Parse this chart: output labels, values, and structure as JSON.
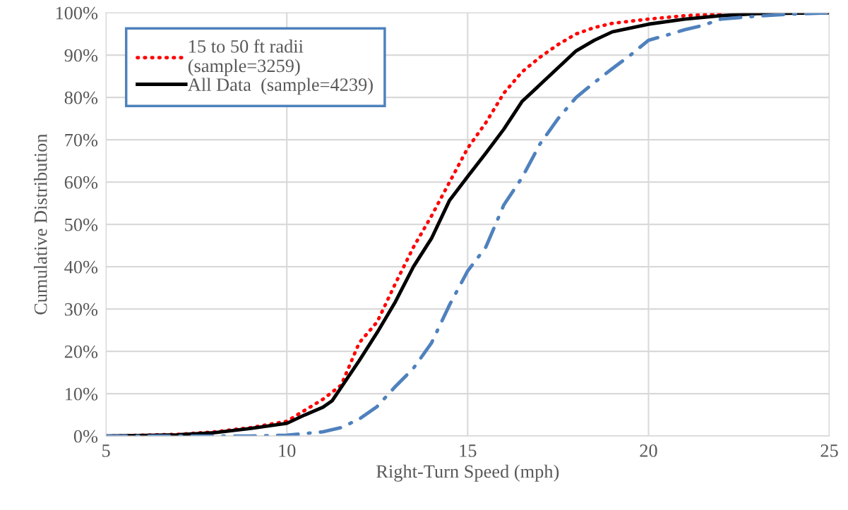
{
  "chart_data": {
    "type": "line",
    "xlabel": "Right-Turn Speed (mph)",
    "ylabel": "Cumulative Distribution",
    "xlim": [
      5,
      25
    ],
    "xticks": [
      5,
      10,
      15,
      20,
      25
    ],
    "ylim": [
      0,
      100
    ],
    "yticks": [
      {
        "value": 0,
        "label": "0%"
      },
      {
        "value": 10,
        "label": "10%"
      },
      {
        "value": 20,
        "label": "20%"
      },
      {
        "value": 30,
        "label": "30%"
      },
      {
        "value": 40,
        "label": "40%"
      },
      {
        "value": 50,
        "label": "50%"
      },
      {
        "value": 60,
        "label": "60%"
      },
      {
        "value": 70,
        "label": "70%"
      },
      {
        "value": 80,
        "label": "80%"
      },
      {
        "value": 90,
        "label": "90%"
      },
      {
        "value": 100,
        "label": "100%"
      }
    ],
    "grid": true,
    "legend": "top left",
    "marker": "none",
    "series": [
      {
        "name": "15 to 50 ft radii\n(sample=3259)",
        "color": "#ff0000",
        "line_style": "dotted",
        "x": [
          5,
          7,
          8,
          9,
          10,
          11,
          11.5,
          12,
          12.5,
          13,
          13.5,
          14,
          14.5,
          15,
          15.5,
          16,
          16.5,
          17,
          17.5,
          18,
          18.5,
          19,
          20,
          21,
          22
        ],
        "values": [
          0,
          0.4,
          1,
          2,
          3.5,
          8.7,
          12,
          22,
          27,
          36,
          44.6,
          52,
          60,
          68,
          74,
          81,
          86,
          89.5,
          92.5,
          95,
          96.5,
          97.5,
          98.5,
          99.3,
          99.8
        ]
      },
      {
        "name": "All Data  (sample=4239)",
        "color": "#000000",
        "line_style": "solid",
        "x": [
          5,
          7,
          8,
          9,
          10,
          10.5,
          11,
          11.25,
          12,
          12.5,
          13,
          13.5,
          14,
          14.5,
          15,
          15.5,
          16,
          16.5,
          17,
          17.5,
          18,
          18.5,
          19,
          20,
          21,
          22,
          23,
          25
        ],
        "values": [
          0,
          0.3,
          0.8,
          1.8,
          3,
          5,
          6.8,
          8.3,
          17.8,
          24.5,
          31.7,
          40,
          46.7,
          55.7,
          61.3,
          66.8,
          72.5,
          79,
          83,
          87,
          91,
          93.5,
          95.5,
          97.3,
          98.5,
          99.3,
          99.8,
          100
        ]
      },
      {
        "color": "#4f81bd",
        "line_style": "dashdot",
        "x": [
          5,
          9,
          10,
          11,
          11.5,
          12,
          12.5,
          13,
          13.5,
          14,
          14.5,
          15,
          15.5,
          16,
          16.5,
          17,
          17.5,
          18,
          18.5,
          19,
          19.5,
          20,
          20.5,
          21,
          21.5,
          22,
          23,
          24,
          25
        ],
        "values": [
          0,
          0,
          0.2,
          1,
          2,
          4,
          7,
          11.7,
          16,
          22,
          31,
          39,
          44.6,
          54.6,
          61,
          69,
          75,
          80,
          83.5,
          86.8,
          90,
          93.5,
          94.7,
          96,
          97,
          98.5,
          99.2,
          99.7,
          100
        ]
      }
    ]
  }
}
